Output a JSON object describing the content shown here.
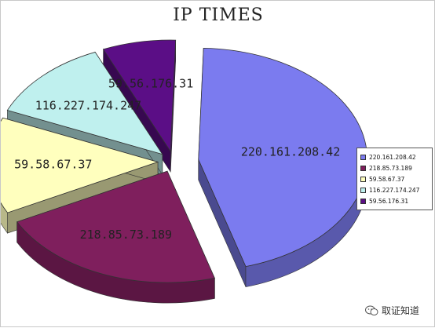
{
  "chart_data": {
    "type": "pie",
    "title": "IP TIMES",
    "categories": [
      "220.161.208.42",
      "218.85.73.189",
      "59.58.67.37",
      "116.227.174.247",
      "59.56.176.31"
    ],
    "values": [
      0.45,
      0.22,
      0.14,
      0.12,
      0.07
    ],
    "colors": [
      "#7b7bef",
      "#7f1f5d",
      "#ffffbe",
      "#bff0ee",
      "#5b0e86"
    ],
    "legend": "right",
    "style": "3d-exploded"
  },
  "watermark": {
    "text": "取证知道",
    "icon": "wechat-icon"
  }
}
